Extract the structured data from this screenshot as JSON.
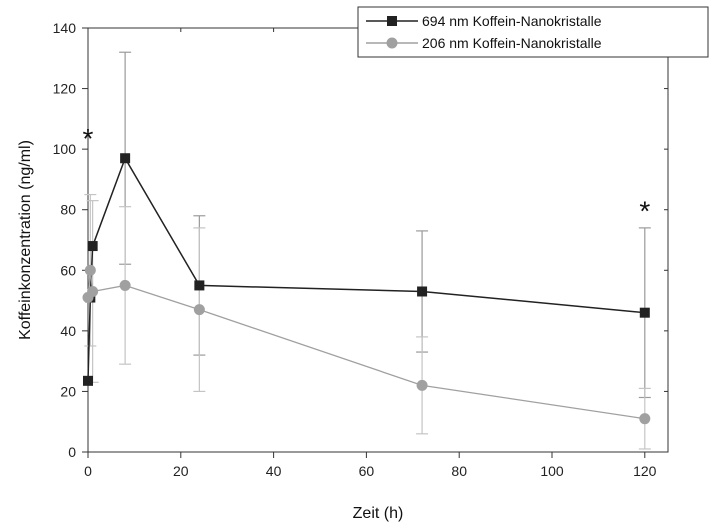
{
  "chart_data": {
    "type": "line",
    "xlabel": "Zeit (h)",
    "ylabel": "Koffeinkonzentration (ng/ml)",
    "xlim": [
      0,
      125
    ],
    "ylim": [
      0,
      140
    ],
    "xticks": [
      0,
      20,
      40,
      60,
      80,
      100,
      120
    ],
    "yticks": [
      0,
      20,
      40,
      60,
      80,
      100,
      120,
      140
    ],
    "legend_position": "top-right",
    "grid": false,
    "series": [
      {
        "name": "694 nm Koffein-Nanokristalle",
        "color": "#222222",
        "marker": "square",
        "x": [
          0,
          0.5,
          1,
          8,
          24,
          72,
          120
        ],
        "y": [
          23.5,
          51,
          68,
          97,
          55,
          53,
          46
        ],
        "error": [
          0,
          0,
          0,
          35,
          23,
          20,
          28
        ]
      },
      {
        "name": "206 nm Koffein-Nanokristalle",
        "color": "#a0a0a0",
        "marker": "circle",
        "x": [
          0,
          0.5,
          1,
          8,
          24,
          72,
          120
        ],
        "y": [
          51,
          60,
          53,
          55,
          47,
          22,
          11
        ],
        "error": [
          0,
          25,
          30,
          26,
          27,
          16,
          10
        ]
      }
    ],
    "annotations": [
      {
        "text": "*",
        "x": 0,
        "y": 105
      },
      {
        "text": "*",
        "x": 120,
        "y": 81
      }
    ]
  }
}
